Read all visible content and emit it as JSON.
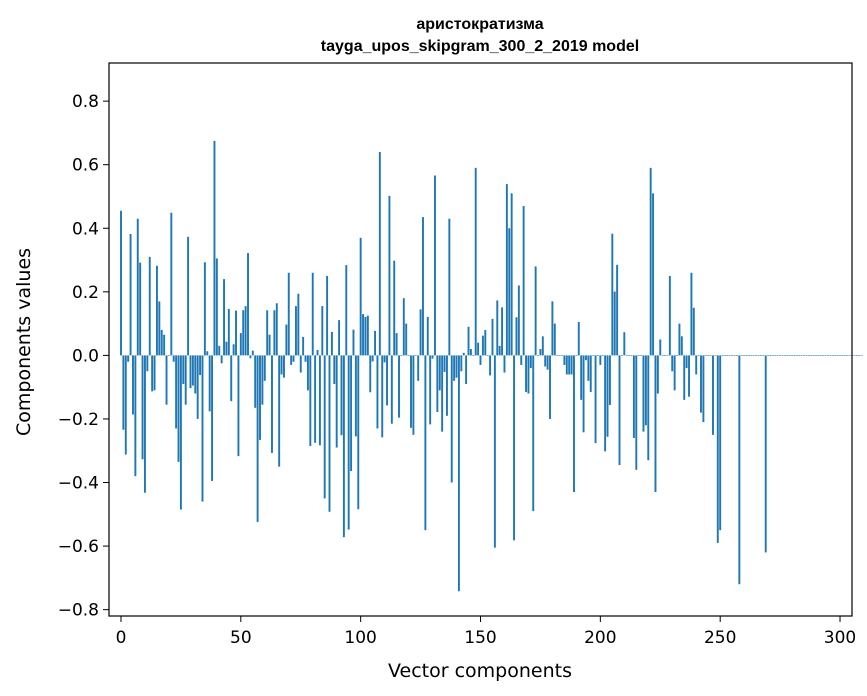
{
  "chart_data": {
    "type": "bar",
    "title": "аристократизма",
    "subtitle": "tayga_upos_skipgram_300_2_2019 model",
    "xlabel": "Vector components",
    "ylabel": "Components values",
    "xlim": [
      -5,
      305
    ],
    "ylim": [
      -0.82,
      0.92
    ],
    "x_ticks": [
      0,
      50,
      100,
      150,
      200,
      250,
      300
    ],
    "y_ticks": [
      -0.8,
      -0.6,
      -0.4,
      -0.2,
      0.0,
      0.2,
      0.4,
      0.6,
      0.8
    ],
    "y_tick_labels": [
      "−0.8",
      "−0.6",
      "−0.4",
      "−0.2",
      "0.0",
      "0.2",
      "0.4",
      "0.6",
      "0.8"
    ],
    "x_tick_labels": [
      "0",
      "50",
      "100",
      "150",
      "200",
      "250",
      "300"
    ],
    "grid": false,
    "bar_color": "#1f77b4",
    "values": [
      0.455,
      -0.234,
      -0.312,
      -0.02,
      0.382,
      -0.186,
      -0.38,
      0.43,
      0.292,
      -0.327,
      -0.432,
      -0.05,
      0.31,
      -0.113,
      -0.11,
      0.282,
      0.17,
      0.08,
      0.065,
      -0.155,
      0.0,
      0.449,
      -0.02,
      -0.23,
      -0.335,
      -0.485,
      -0.09,
      -0.155,
      0.373,
      -0.103,
      -0.095,
      -0.12,
      -0.2,
      -0.062,
      -0.46,
      0.293,
      0.013,
      -0.176,
      -0.395,
      0.675,
      0.305,
      0.03,
      -0.025,
      0.24,
      0.043,
      0.146,
      -0.144,
      0.035,
      0.141,
      -0.317,
      0.07,
      0.142,
      0.155,
      0.322,
      -0.009,
      0.015,
      -0.165,
      -0.524,
      -0.266,
      -0.155,
      -0.08,
      0.142,
      0.065,
      -0.307,
      0.142,
      0.164,
      -0.35,
      -0.06,
      -0.07,
      0.097,
      0.26,
      -0.03,
      -0.02,
      0.155,
      0.194,
      -0.054,
      0.058,
      -0.02,
      -0.11,
      -0.285,
      0.26,
      -0.275,
      0.017,
      -0.283,
      0.155,
      -0.45,
      0.25,
      -0.492,
      0.074,
      -0.09,
      -0.29,
      0.111,
      -0.251,
      -0.572,
      0.284,
      -0.548,
      -0.364,
      0.081,
      -0.255,
      -0.484,
      0.37,
      0.13,
      0.121,
      0.125,
      -0.116,
      -0.019,
      0.077,
      -0.23,
      0.64,
      -0.258,
      -0.022,
      -0.157,
      0.502,
      -0.215,
      0.298,
      0.07,
      -0.196,
      0.0,
      0.18,
      0.1,
      0.0,
      -0.228,
      -0.25,
      0.0,
      -0.08,
      0.145,
      0.435,
      -0.55,
      0.121,
      -0.217,
      -0.01,
      0.566,
      -0.178,
      -0.11,
      -0.24,
      -0.052,
      -0.19,
      0.43,
      -0.4,
      -0.08,
      -0.07,
      -0.742,
      -0.05,
      0.008,
      -0.09,
      0.09,
      0.02,
      0.0,
      0.59,
      0.04,
      -0.03,
      0.062,
      0.08,
      0.0,
      -0.063,
      0.115,
      -0.605,
      0.173,
      0.03,
      0.151,
      -0.054,
      0.539,
      0.4,
      0.51,
      -0.582,
      0.12,
      0.22,
      -0.03,
      0.47,
      -0.115,
      -0.12,
      -0.04,
      -0.49,
      0.28,
      0.0,
      0.02,
      0.06,
      -0.035,
      -0.045,
      -0.2,
      0.17,
      0.1,
      0.0,
      0.0,
      0.0,
      -0.03,
      -0.06,
      -0.06,
      -0.06,
      -0.43,
      0.0,
      0.105,
      -0.14,
      -0.242,
      -0.015,
      -0.08,
      -0.115,
      0.0,
      -0.276,
      0.0,
      -0.03,
      0.0,
      -0.302,
      -0.256,
      -0.156,
      0.383,
      0.201,
      0.285,
      -0.345,
      0.0,
      0.073,
      0.0,
      0.0,
      0.0,
      -0.26,
      -0.36,
      0.0,
      0.0,
      -0.24,
      -0.22,
      -0.33,
      0.59,
      0.51,
      -0.43,
      -0.12,
      0.05,
      0.0,
      0.0,
      0.0,
      0.25,
      -0.05,
      -0.11,
      0.0,
      0.1,
      0.06,
      -0.14,
      -0.04,
      -0.13,
      0.26,
      0.15,
      -0.06,
      0.0,
      -0.18,
      -0.21,
      0.0,
      0.0,
      0.0,
      -0.25,
      0.0,
      -0.59,
      -0.55,
      0.0,
      0.0,
      0.0,
      0.0,
      0.0,
      0.0,
      0.0,
      -0.72,
      0.0,
      0.0,
      0.0,
      0.0,
      0.0,
      0.0,
      0.0,
      0.0,
      0.0,
      0.0,
      -0.62,
      0.0,
      0.0,
      0.0,
      0.0,
      0.0,
      0.0,
      0.0,
      0.0,
      0.0,
      0.0,
      0.0,
      0.0,
      0.0,
      0.0,
      0.0,
      0.0,
      0.0,
      0.0,
      0.0,
      0.0,
      0.0,
      0.0,
      0.0,
      0.0,
      0.0,
      0.0,
      0.0,
      0.0,
      0.0,
      0.0,
      0.0,
      0.0,
      0.0,
      0.0,
      0.0,
      0.0,
      0.0,
      0.0,
      0.0,
      0.0
    ]
  }
}
